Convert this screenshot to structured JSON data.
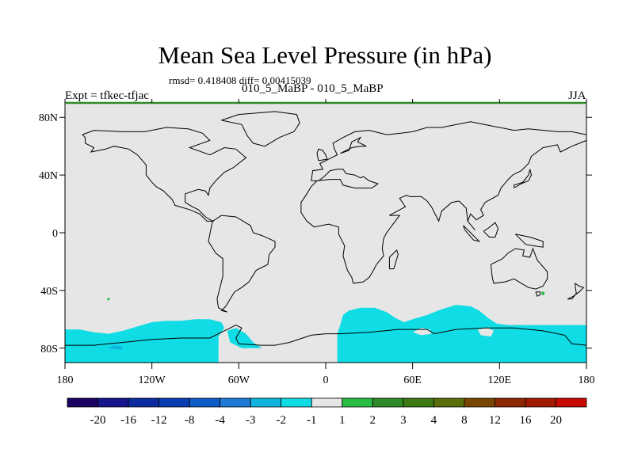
{
  "figure": {
    "title": "Mean Sea Level Pressure (in hPa)",
    "stats": "rmsd= 0.418408 diff= 0.00415039",
    "subtitle": "010_5_MaBP - 010_5_MaBP",
    "expt": "Expt = tfkec-tfjac",
    "season": "JJA"
  },
  "chart_data": {
    "type": "heatmap",
    "title": "Mean Sea Level Pressure (in hPa)",
    "xlabel": "",
    "ylabel": "",
    "x_range": [
      -180,
      180
    ],
    "y_range": [
      -90,
      90
    ],
    "x_ticks": [
      {
        "value": -180,
        "label": "180"
      },
      {
        "value": -120,
        "label": "120W"
      },
      {
        "value": -60,
        "label": "60W"
      },
      {
        "value": 0,
        "label": "0"
      },
      {
        "value": 60,
        "label": "60E"
      },
      {
        "value": 120,
        "label": "120E"
      },
      {
        "value": 180,
        "label": "180"
      }
    ],
    "y_ticks": [
      {
        "value": 80,
        "label": "80N"
      },
      {
        "value": 40,
        "label": "40N"
      },
      {
        "value": 0,
        "label": "0"
      },
      {
        "value": -40,
        "label": "40S"
      },
      {
        "value": -80,
        "label": "80S"
      }
    ],
    "colorbar": {
      "boundaries": [
        "-20",
        "-16",
        "-12",
        "-8",
        "-4",
        "-3",
        "-2",
        "-1",
        "1",
        "2",
        "3",
        "4",
        "8",
        "12",
        "16",
        "20"
      ],
      "colors": [
        "#1a0060",
        "#16148c",
        "#0c2aa0",
        "#0a3cb4",
        "#0b5cc8",
        "#1e7ad6",
        "#10b4e0",
        "#0fdce4",
        "#e6e6e6",
        "#28be46",
        "#2e8c28",
        "#3c7814",
        "#5a6e0a",
        "#784600",
        "#8c2800",
        "#a01800",
        "#c80a00"
      ]
    },
    "background_value_range": [
      "-1",
      "1"
    ],
    "anomaly_regions": [
      {
        "name": "Southern Ocean band, Pacific sector",
        "lon_range": [
          -180,
          -70
        ],
        "lat_range": [
          -90,
          -58
        ],
        "class": "-2 to -1"
      },
      {
        "name": "Southern Ocean band, Indian sector",
        "lon_range": [
          10,
          180
        ],
        "lat_range": [
          -90,
          -50
        ],
        "class": "-2 to -1"
      },
      {
        "name": "Weddell/Antarctic margin patch",
        "lon_range": [
          -70,
          -40
        ],
        "lat_range": [
          -80,
          -63
        ],
        "class": "-2 to -1"
      },
      {
        "name": "small low patch near Ross Sea",
        "lon_range": [
          -148,
          -140
        ],
        "lat_range": [
          -80,
          -78
        ],
        "class": "-3 to -2"
      },
      {
        "name": "small high point SE Pacific",
        "lon": -150,
        "lat": -46,
        "class": "1 to 2"
      },
      {
        "name": "small high point Tasmania",
        "lon": 150,
        "lat": -42,
        "class": "1 to 2"
      }
    ],
    "overlay": "continent outlines",
    "grid": false,
    "legend_position": "bottom"
  }
}
